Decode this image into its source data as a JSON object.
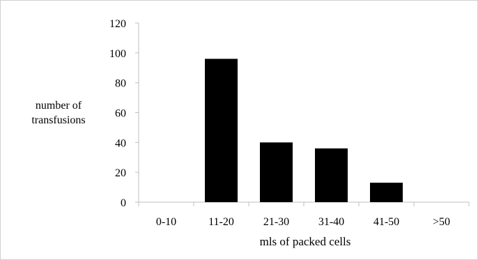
{
  "chart_data": {
    "type": "bar",
    "title": "",
    "categories": [
      "0-10",
      "11-20",
      "21-30",
      "31-40",
      "41-50",
      ">50"
    ],
    "values": [
      0,
      96,
      40,
      36,
      13,
      0
    ],
    "xlabel": "mls of packed cells",
    "ylabel": [
      "number of",
      "transfusions"
    ],
    "ylim": [
      0,
      120
    ],
    "yticks": [
      0,
      20,
      40,
      60,
      80,
      100,
      120
    ],
    "grid": false,
    "legend": "none",
    "bar_color": "#000000",
    "axis_color": "#bfbfbf"
  }
}
